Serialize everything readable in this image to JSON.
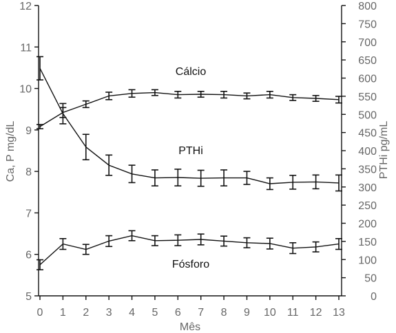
{
  "chart_data": {
    "type": "line",
    "xlabel": "Mês",
    "ylabel_left": "Ca, P mg/dL",
    "ylabel_right": "PTHi pg/mL",
    "x": [
      0,
      1,
      2,
      3,
      4,
      5,
      6,
      7,
      8,
      9,
      10,
      11,
      12,
      13
    ],
    "xlim": [
      0,
      13
    ],
    "ylim_left": [
      5,
      12
    ],
    "yticks_left": [
      5,
      6,
      7,
      8,
      9,
      10,
      11,
      12
    ],
    "ylim_right": [
      0,
      800
    ],
    "yticks_right": [
      0,
      50,
      100,
      150,
      200,
      250,
      300,
      350,
      400,
      450,
      500,
      550,
      600,
      650,
      700,
      750,
      800
    ],
    "grid": false,
    "legend": "none",
    "series": [
      {
        "name": "Cálcio",
        "axis": "left",
        "values": [
          9.08,
          9.42,
          9.62,
          9.82,
          9.88,
          9.9,
          9.85,
          9.86,
          9.85,
          9.82,
          9.85,
          9.78,
          9.76,
          9.73
        ],
        "error": [
          0.05,
          0.12,
          0.08,
          0.09,
          0.09,
          0.07,
          0.08,
          0.07,
          0.08,
          0.07,
          0.08,
          0.07,
          0.07,
          0.08
        ]
      },
      {
        "name": "PTHi",
        "axis": "right",
        "values": [
          627,
          502,
          410,
          360,
          336,
          325,
          326,
          324,
          325,
          325,
          309,
          313,
          314,
          311
        ],
        "error": [
          32,
          28,
          35,
          28,
          24,
          22,
          23,
          22,
          22,
          18,
          16,
          19,
          19,
          22
        ]
      },
      {
        "name": "Fósforo",
        "axis": "left",
        "values": [
          5.75,
          6.25,
          6.12,
          6.32,
          6.45,
          6.33,
          6.34,
          6.36,
          6.32,
          6.28,
          6.26,
          6.15,
          6.18,
          6.25
        ],
        "error": [
          0.12,
          0.13,
          0.12,
          0.13,
          0.12,
          0.12,
          0.13,
          0.13,
          0.12,
          0.12,
          0.13,
          0.13,
          0.12,
          0.13
        ]
      }
    ]
  }
}
